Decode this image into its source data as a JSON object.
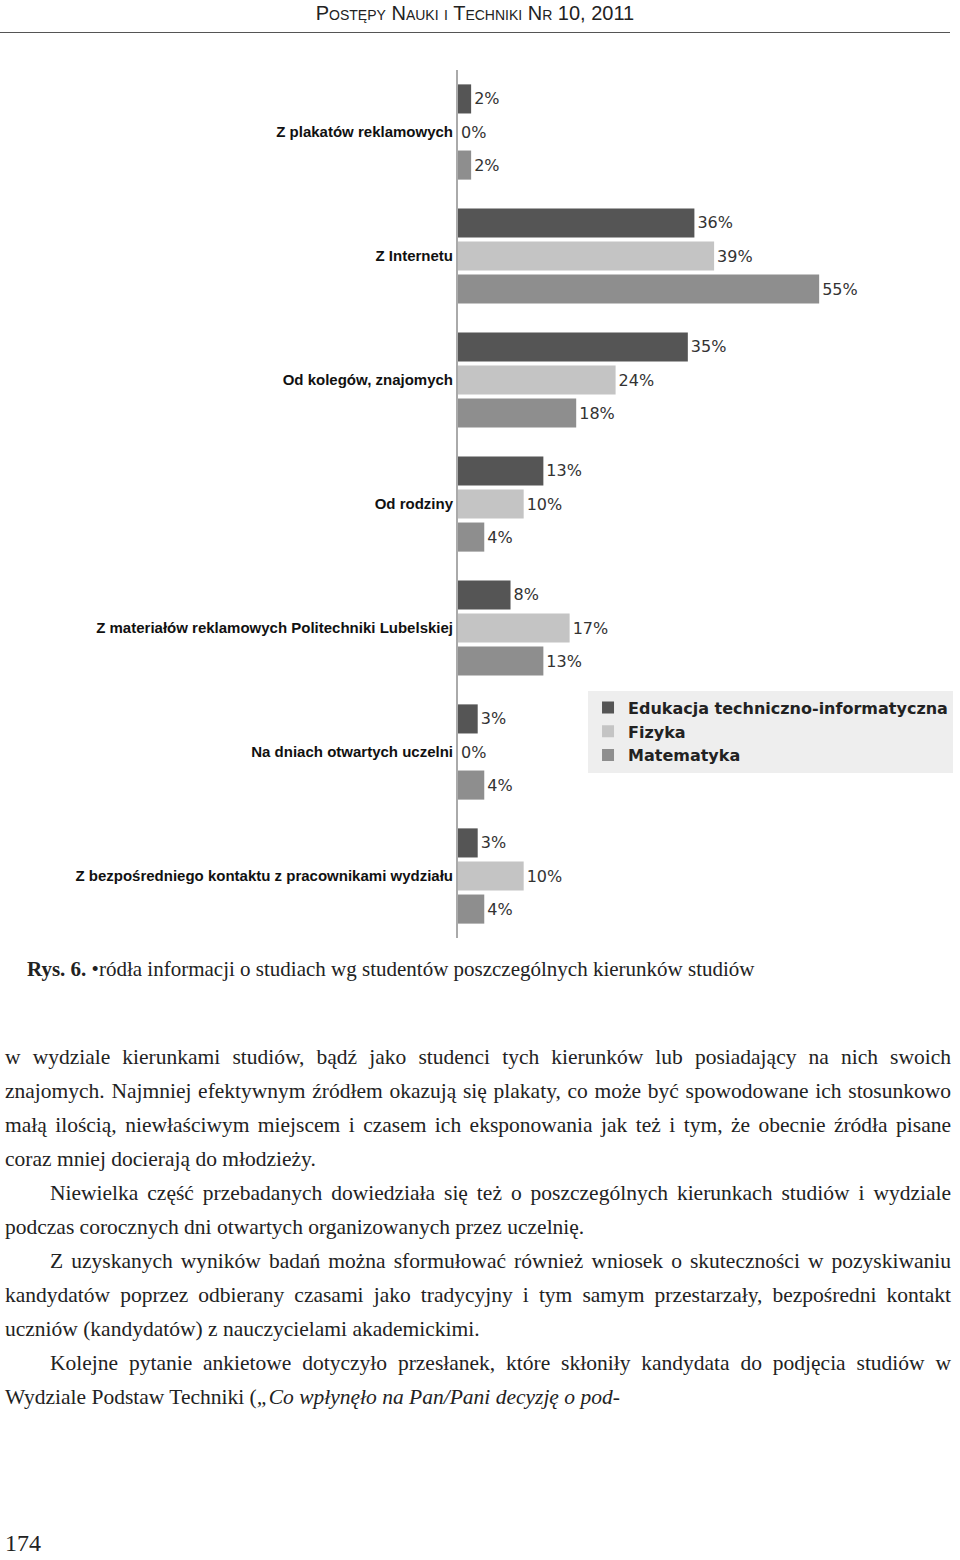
{
  "header": "Postępy Nauki i Techniki Nr 10, 2011",
  "chart_data": {
    "type": "bar",
    "orientation": "horizontal",
    "categories": [
      "Z plakatów reklamowych",
      "Z Internetu",
      "Od kolegów, znajomych",
      "Od rodziny",
      "Z materiałów reklamowych Politechniki Lubelskiej",
      "Na dniach otwartych uczelni",
      "Z bezpośredniego kontaktu z pracownikami wydziału"
    ],
    "series": [
      {
        "name": "Edukacja techniczno-informatyczna",
        "color": "#555555",
        "values": [
          2,
          36,
          35,
          13,
          8,
          3,
          3
        ],
        "value_labels": [
          "2%",
          "36%",
          "35%",
          "13%",
          "8%",
          "3%",
          "3%"
        ]
      },
      {
        "name": "Fizyka",
        "color": "#c4c4c4",
        "values": [
          0,
          39,
          24,
          10,
          17,
          0,
          10
        ],
        "value_labels": [
          "0%",
          "39%",
          "24%",
          "10%",
          "17%",
          "0%",
          "10%"
        ]
      },
      {
        "name": "Matematyka",
        "color": "#8e8e8e",
        "values": [
          2,
          55,
          18,
          4,
          13,
          4,
          4
        ],
        "value_labels": [
          "2%",
          "55%",
          "18%",
          "4%",
          "13%",
          "4%",
          "4%"
        ]
      }
    ],
    "xlim": [
      0,
      60
    ],
    "data_labels": true,
    "tick_labels": "y",
    "grid": false,
    "legend": "right"
  },
  "caption": {
    "label": "Rys. 6.",
    "text": "•ródła informacji o studiach wg studentów poszczególnych kierunków studiów"
  },
  "paragraphs": [
    [
      {
        "text": "w wydziale kierunkami studiów, bądź jako studenci tych kierunków lub posiadający na nich swoich znajomych. Najmniej efektywnym źródłem okazują się plakaty, co może być spowodowane ich stosunkowo małą ilością, niewłaściwym miejscem i czasem ich eksponowania jak też i tym, że obecnie źródła pisane coraz mniej docierają do młodzieży."
      }
    ],
    [
      {
        "text": "Niewielka część przebadanych dowiedziała się też o poszczególnych kierunkach studiów i wydziale podczas corocznych dni otwartych organizowanych przez uczelnię."
      }
    ],
    [
      {
        "text": "Z uzyskanych wyników badań można sformułować również wniosek o skuteczności w pozyskiwaniu kandydatów poprzez odbierany czasami jako tradycyjny i tym samym przestarzały, bezpośredni kontakt uczniów (kandydatów) z nauczycielami akademickimi."
      }
    ],
    [
      {
        "text": "Kolejne pytanie ankietowe dotyczyło przesłanek, które skłoniły kandydata do podjęcia studiów w Wydziale Podstaw Techniki ("
      },
      {
        "text": "„Co wpłynęło na Pan/Pani decyzję o pod-",
        "italic": true
      }
    ]
  ],
  "page_number": "174"
}
